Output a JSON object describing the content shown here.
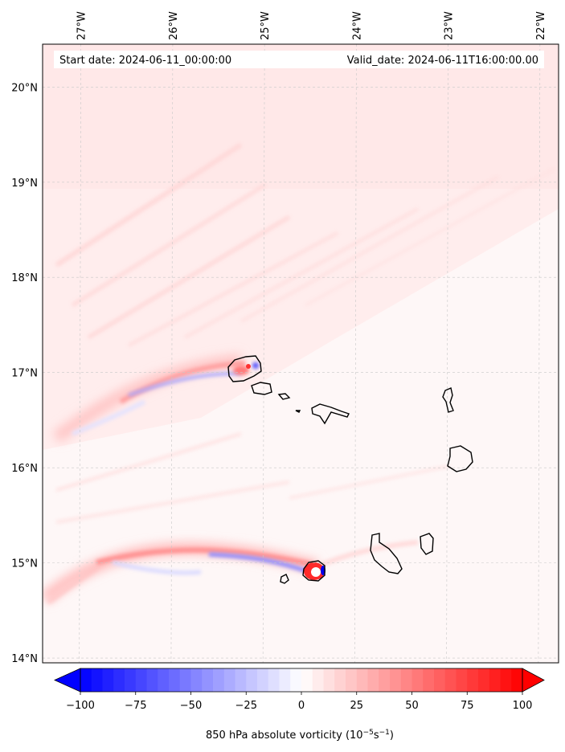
{
  "header": {
    "start_date": "Start date: 2024-06-11_00:00:00",
    "valid_date": "Valid_date: 2024-06-11T16:00:00.00"
  },
  "map": {
    "lon_range": [
      -27.4,
      -21.78
    ],
    "lat_range": [
      13.95,
      20.45
    ],
    "lon_ticks": [
      "27°W",
      "26°W",
      "25°W",
      "24°W",
      "23°W",
      "22°W"
    ],
    "lat_ticks": [
      "20°N",
      "19°N",
      "18°N",
      "17°N",
      "16°N",
      "15°N",
      "14°N"
    ],
    "gridlines": true,
    "field": "850 hPa absolute vorticity"
  },
  "colorbar": {
    "min": -100,
    "max": 100,
    "ticks": [
      "−100",
      "−75",
      "−50",
      "−25",
      "0",
      "25",
      "50",
      "75",
      "100"
    ],
    "label_main": "850 hPa absolute vorticity (10",
    "label_exp1": "−5",
    "label_mid": "s",
    "label_exp2": "−1",
    "label_end": ")",
    "extend": "both",
    "colormap": "bwr",
    "low_color": "#0000ff",
    "mid_color": "#ffffff",
    "high_color": "#ff0000"
  }
}
